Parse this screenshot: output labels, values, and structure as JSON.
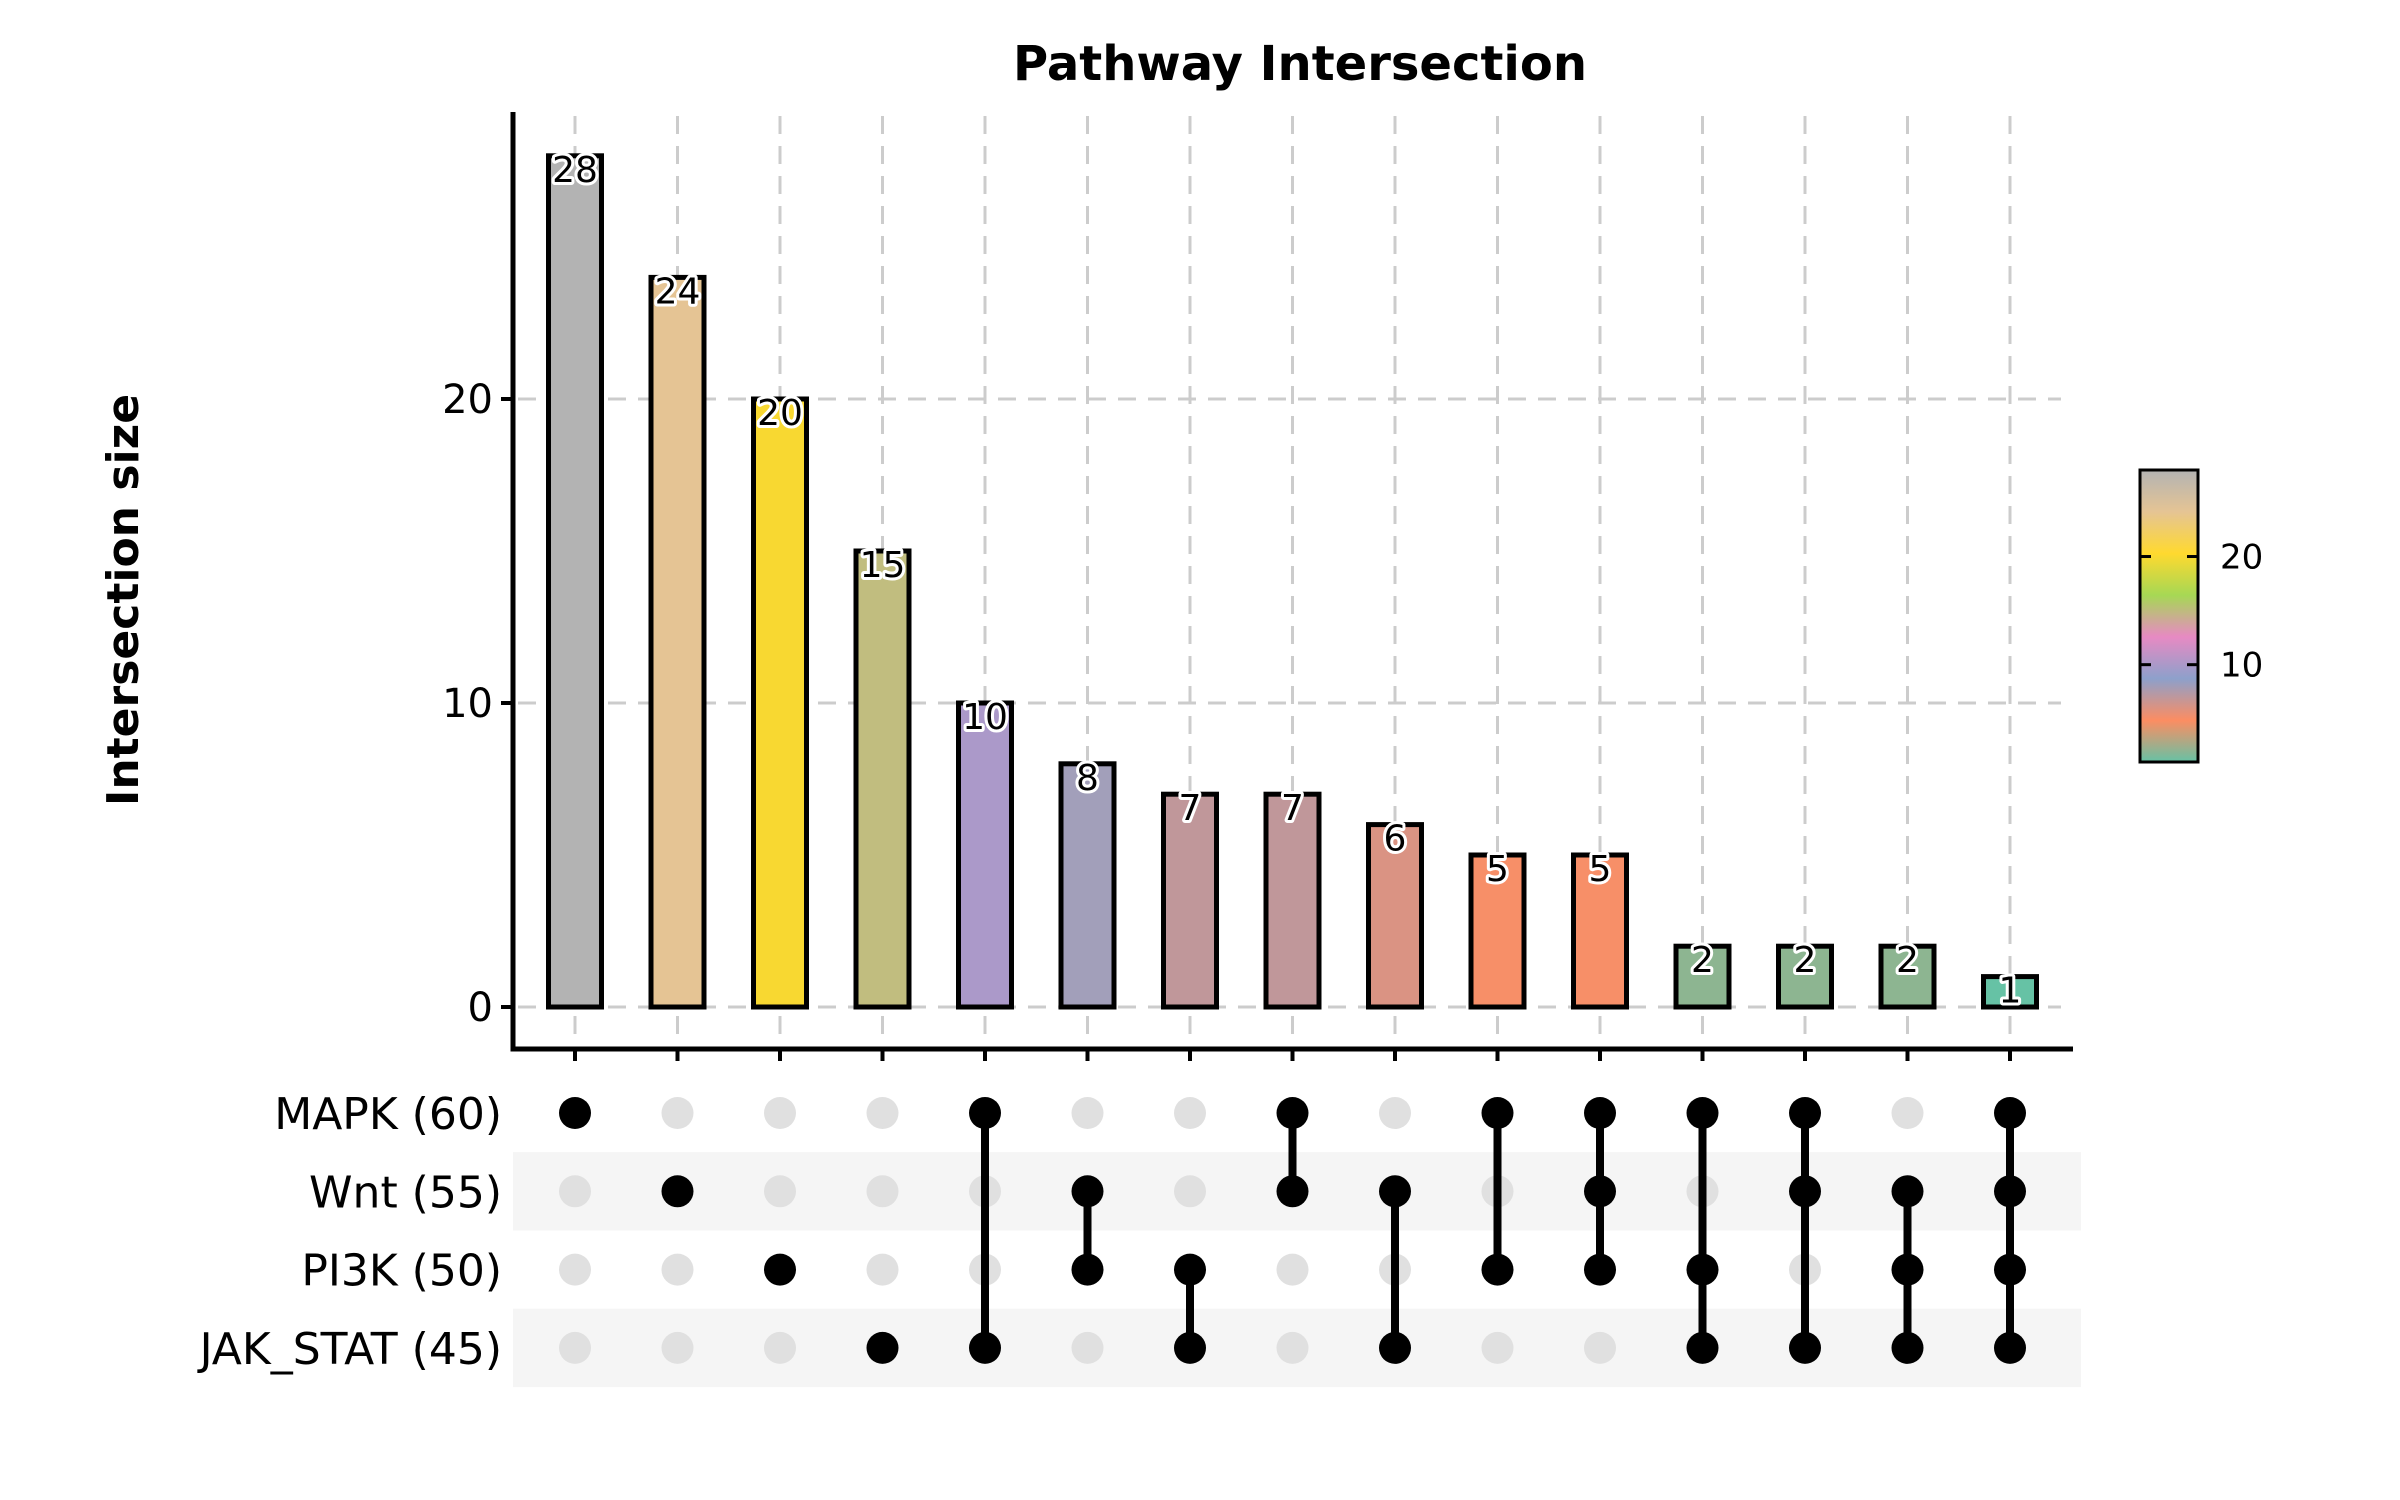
{
  "chart_data": {
    "type": "bar",
    "subtype": "upset",
    "title": "Pathway Intersection",
    "xlabel": "",
    "ylabel": "Intersection size",
    "ylim": [
      -1.4,
      28.8
    ],
    "yticks": [
      0,
      10,
      20
    ],
    "grid": true,
    "sets": [
      {
        "name": "MAPK",
        "size": 60,
        "label": "MAPK (60)"
      },
      {
        "name": "Wnt",
        "size": 55,
        "label": "Wnt (55)"
      },
      {
        "name": "PI3K",
        "size": 50,
        "label": "PI3K (50)"
      },
      {
        "name": "JAK_STAT",
        "size": 45,
        "label": "JAK_STAT (45)"
      }
    ],
    "intersections": [
      {
        "members": [
          "MAPK"
        ],
        "value": 28,
        "color": "#b3b3b3"
      },
      {
        "members": [
          "Wnt"
        ],
        "value": 24,
        "color": "#e5c494"
      },
      {
        "members": [
          "PI3K"
        ],
        "value": 20,
        "color": "#f8d831"
      },
      {
        "members": [
          "JAK_STAT"
        ],
        "value": 15,
        "color": "#c1bd7f"
      },
      {
        "members": [
          "MAPK",
          "JAK_STAT"
        ],
        "value": 10,
        "color": "#ab99c9"
      },
      {
        "members": [
          "Wnt",
          "PI3K"
        ],
        "value": 8,
        "color": "#a29fba"
      },
      {
        "members": [
          "PI3K",
          "JAK_STAT"
        ],
        "value": 7,
        "color": "#c0979a"
      },
      {
        "members": [
          "MAPK",
          "Wnt"
        ],
        "value": 7,
        "color": "#c0979a"
      },
      {
        "members": [
          "Wnt",
          "JAK_STAT"
        ],
        "value": 6,
        "color": "#da9383"
      },
      {
        "members": [
          "MAPK",
          "PI3K"
        ],
        "value": 5,
        "color": "#f78f68"
      },
      {
        "members": [
          "MAPK",
          "Wnt",
          "PI3K"
        ],
        "value": 5,
        "color": "#f78f68"
      },
      {
        "members": [
          "MAPK",
          "PI3K",
          "JAK_STAT"
        ],
        "value": 2,
        "color": "#8db591"
      },
      {
        "members": [
          "MAPK",
          "Wnt",
          "JAK_STAT"
        ],
        "value": 2,
        "color": "#8db591"
      },
      {
        "members": [
          "Wnt",
          "PI3K",
          "JAK_STAT"
        ],
        "value": 2,
        "color": "#8db591"
      },
      {
        "members": [
          "MAPK",
          "Wnt",
          "PI3K",
          "JAK_STAT"
        ],
        "value": 1,
        "color": "#66c2a5"
      }
    ],
    "colorbar": {
      "colormap": "Set2",
      "range": [
        1,
        28
      ],
      "ticks": [
        10,
        20
      ],
      "stops": [
        "#66c2a5",
        "#fc8d62",
        "#8da0cb",
        "#e78ac3",
        "#a6d854",
        "#ffd92f",
        "#e5c494",
        "#b3b3b3"
      ]
    },
    "legend": "right"
  }
}
